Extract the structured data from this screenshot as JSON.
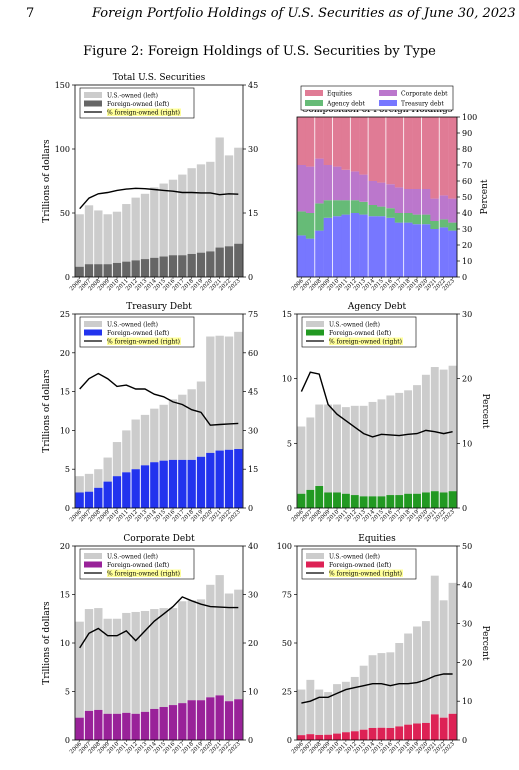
{
  "header": {
    "page_number": "7",
    "running_title": "Foreign Portfolio Holdings of U.S. Securities as of June 30, 2023"
  },
  "figure": {
    "title": "Figure 2: Foreign Holdings of U.S. Securities by Type"
  },
  "colors": {
    "us_owned": "#cccccc",
    "line": "#000000",
    "foreign_total": "#666666",
    "foreign_treasury": "#2233ee",
    "foreign_agency": "#229922",
    "foreign_corporate": "#992299",
    "foreign_equities": "#dd2255",
    "comp_equities": "#e07b95",
    "comp_corporate": "#bb77cc",
    "comp_agency": "#66bb77",
    "comp_treasury": "#7777ff",
    "legend_highlight": "#ffff99"
  },
  "chart_data": [
    {
      "id": "total",
      "type": "bar",
      "title": "Total U.S. Securities",
      "ylabel": "Trillions of dollars",
      "y2label": "",
      "ylim": [
        0,
        150
      ],
      "yticks": [
        "0",
        "50",
        "100",
        "150"
      ],
      "y2lim": [
        0,
        45
      ],
      "y2ticks": [
        "0",
        "15",
        "30",
        "45"
      ],
      "categories": [
        "2006",
        "2007",
        "2008",
        "2009",
        "2010",
        "2011",
        "2012",
        "2013",
        "2014",
        "2015",
        "2016",
        "2017",
        "2018",
        "2019",
        "2020",
        "2021",
        "2022",
        "2023"
      ],
      "foreign_color": "foreign_total",
      "legend": [
        "U.S.-owned (left)",
        "Foreign-owned (left)",
        "% foreign-owned (right)"
      ],
      "series": [
        {
          "name": "Foreign-owned (left)",
          "values": [
            8,
            10,
            10,
            10,
            11,
            12,
            13,
            14,
            15,
            16,
            17,
            17,
            18,
            19,
            20,
            23,
            24,
            26
          ]
        },
        {
          "name": "U.S.-owned (left)",
          "values": [
            41,
            46,
            42,
            39,
            40,
            45,
            49,
            51,
            55,
            57,
            59,
            63,
            67,
            69,
            70,
            86,
            71,
            75
          ]
        },
        {
          "name": "% foreign-owned (right)",
          "values": [
            16,
            18.5,
            19.5,
            19.8,
            20.3,
            20.6,
            20.8,
            20.7,
            20.5,
            20.3,
            20.1,
            19.8,
            19.8,
            19.7,
            19.7,
            19.3,
            19.5,
            19.4
          ]
        }
      ]
    },
    {
      "id": "composition",
      "type": "area",
      "title": "Composition of Foreign Holdings",
      "ylabel": "Percent",
      "ylim": [
        0,
        100
      ],
      "yticks": [
        "0",
        "10",
        "20",
        "30",
        "40",
        "50",
        "60",
        "70",
        "80",
        "90",
        "100"
      ],
      "categories": [
        "2006",
        "2007",
        "2008",
        "2009",
        "2010",
        "2011",
        "2012",
        "2013",
        "2014",
        "2015",
        "2016",
        "2017",
        "2018",
        "2019",
        "2020",
        "2021",
        "2022",
        "2023"
      ],
      "legend": [
        "Equities",
        "Corporate debt",
        "Agency debt",
        "Treasury debt"
      ],
      "series": [
        {
          "name": "Treasury debt",
          "values": [
            26,
            24,
            29,
            37,
            38,
            39,
            40,
            39,
            38,
            38,
            37,
            34,
            34,
            33,
            33,
            30,
            31,
            29
          ]
        },
        {
          "name": "Agency debt",
          "values": [
            15,
            16,
            17,
            11,
            10,
            9,
            8,
            8,
            7,
            6,
            6,
            6,
            6,
            6,
            6,
            5,
            5,
            5
          ]
        },
        {
          "name": "Corporate debt",
          "values": [
            29,
            29,
            28,
            22,
            21,
            19,
            18,
            17,
            15,
            15,
            15,
            16,
            15,
            16,
            16,
            14,
            15,
            15
          ]
        },
        {
          "name": "Equities",
          "values": [
            30,
            31,
            26,
            30,
            31,
            33,
            34,
            36,
            40,
            41,
            42,
            44,
            45,
            45,
            45,
            51,
            49,
            51
          ]
        }
      ]
    },
    {
      "id": "treasury",
      "type": "bar",
      "title": "Treasury Debt",
      "ylabel": "Trillions of dollars",
      "y2label": "",
      "ylim": [
        0,
        25
      ],
      "yticks": [
        "0",
        "5",
        "10",
        "15",
        "20",
        "25"
      ],
      "y2lim": [
        0,
        75
      ],
      "y2ticks": [
        "0",
        "15",
        "30",
        "45",
        "60",
        "75"
      ],
      "categories": [
        "2006",
        "2007",
        "2008",
        "2009",
        "2010",
        "2011",
        "2012",
        "2013",
        "2014",
        "2015",
        "2016",
        "2017",
        "2018",
        "2019",
        "2020",
        "2021",
        "2022",
        "2023"
      ],
      "foreign_color": "foreign_treasury",
      "legend": [
        "U.S.-owned (left)",
        "Foreign-owned (left)",
        "% foreign-owned (right)"
      ],
      "series": [
        {
          "name": "Foreign-owned (left)",
          "values": [
            2.0,
            2.1,
            2.6,
            3.4,
            4.1,
            4.6,
            5.0,
            5.5,
            5.9,
            6.1,
            6.2,
            6.2,
            6.2,
            6.6,
            7.1,
            7.4,
            7.5,
            7.6
          ]
        },
        {
          "name": "U.S.-owned (left)",
          "values": [
            2.1,
            2.3,
            2.4,
            3.1,
            4.4,
            5.4,
            6.4,
            6.5,
            6.9,
            7.2,
            7.8,
            8.4,
            9.1,
            9.7,
            15.0,
            14.8,
            14.6,
            15.1
          ]
        },
        {
          "name": "% foreign-owned (right)",
          "values": [
            46,
            50,
            52,
            50,
            47,
            47.5,
            46,
            46,
            44,
            43,
            41,
            40,
            38,
            37,
            32,
            32.3,
            32.5,
            32.7
          ]
        }
      ]
    },
    {
      "id": "agency",
      "type": "bar",
      "title": "Agency Debt",
      "ylabel": "",
      "y2label": "Percent",
      "ylim": [
        0,
        15
      ],
      "yticks": [
        "0",
        "5",
        "10",
        "15"
      ],
      "y2lim": [
        0,
        30
      ],
      "y2ticks": [
        "0",
        "10",
        "20",
        "30"
      ],
      "categories": [
        "2006",
        "2007",
        "2008",
        "2009",
        "2010",
        "2011",
        "2012",
        "2013",
        "2014",
        "2015",
        "2016",
        "2017",
        "2018",
        "2019",
        "2020",
        "2021",
        "2022",
        "2023"
      ],
      "foreign_color": "foreign_agency",
      "legend": [
        "U.S.-owned (left)",
        "Foreign-owned (left)",
        "% foreign-owned (right)"
      ],
      "series": [
        {
          "name": "Foreign-owned (left)",
          "values": [
            1.1,
            1.4,
            1.7,
            1.2,
            1.2,
            1.1,
            1.0,
            0.9,
            0.9,
            0.9,
            1.0,
            1.0,
            1.1,
            1.1,
            1.2,
            1.3,
            1.2,
            1.3
          ]
        },
        {
          "name": "U.S.-owned (left)",
          "values": [
            5.2,
            5.6,
            6.3,
            6.8,
            6.8,
            6.7,
            6.9,
            7.0,
            7.3,
            7.5,
            7.7,
            7.9,
            8.0,
            8.4,
            9.1,
            9.6,
            9.5,
            9.7
          ]
        },
        {
          "name": "% foreign-owned (right)",
          "values": [
            18,
            21,
            20.7,
            16,
            14.5,
            13.5,
            12.5,
            11.5,
            11,
            11.4,
            11.3,
            11.2,
            11.4,
            11.5,
            12,
            11.8,
            11.5,
            11.8
          ]
        }
      ]
    },
    {
      "id": "corporate",
      "type": "bar",
      "title": "Corporate Debt",
      "ylabel": "Trillions of dollars",
      "y2label": "",
      "ylim": [
        0,
        20
      ],
      "yticks": [
        "0",
        "5",
        "10",
        "15",
        "20"
      ],
      "y2lim": [
        0,
        40
      ],
      "y2ticks": [
        "0",
        "10",
        "20",
        "30",
        "40"
      ],
      "categories": [
        "2006",
        "2007",
        "2008",
        "2009",
        "2010",
        "2011",
        "2012",
        "2013",
        "2014",
        "2015",
        "2016",
        "2017",
        "2018",
        "2019",
        "2020",
        "2021",
        "2022",
        "2023"
      ],
      "foreign_color": "foreign_corporate",
      "legend": [
        "U.S.-owned (left)",
        "Foreign-owned (left)",
        "% foreign-owned (right)"
      ],
      "series": [
        {
          "name": "Foreign-owned (left)",
          "values": [
            2.3,
            3.0,
            3.1,
            2.7,
            2.7,
            2.8,
            2.7,
            2.9,
            3.2,
            3.4,
            3.6,
            3.8,
            4.1,
            4.1,
            4.4,
            4.6,
            4.0,
            4.2
          ]
        },
        {
          "name": "U.S.-owned (left)",
          "values": [
            9.9,
            10.5,
            10.5,
            9.8,
            9.8,
            10.3,
            10.5,
            10.4,
            10.3,
            10.2,
            10.0,
            10.5,
            10.3,
            10.4,
            11.6,
            12.4,
            11.1,
            11.3
          ]
        },
        {
          "name": "% foreign-owned (right)",
          "values": [
            19,
            22,
            23,
            21.5,
            21.5,
            22.5,
            20.5,
            22.5,
            24.5,
            26,
            27.5,
            29.5,
            28.7,
            28,
            27.5,
            27.4,
            27.3,
            27.3
          ]
        }
      ]
    },
    {
      "id": "equities",
      "type": "bar",
      "title": "Equities",
      "ylabel": "",
      "y2label": "Percent",
      "ylim": [
        0,
        100
      ],
      "yticks": [
        "0",
        "25",
        "50",
        "75",
        "100"
      ],
      "y2lim": [
        0,
        50
      ],
      "y2ticks": [
        "0",
        "10",
        "20",
        "30",
        "40",
        "50"
      ],
      "categories": [
        "2006",
        "2007",
        "2008",
        "2009",
        "2010",
        "2011",
        "2012",
        "2013",
        "2014",
        "2015",
        "2016",
        "2017",
        "2018",
        "2019",
        "2020",
        "2021",
        "2022",
        "2023"
      ],
      "foreign_color": "foreign_equities",
      "legend": [
        "U.S.-owned (left)",
        "Foreign-owned (left)",
        "% foreign-owned (right)"
      ],
      "series": [
        {
          "name": "Foreign-owned (left)",
          "values": [
            2.5,
            3.0,
            2.6,
            2.7,
            3.3,
            4.0,
            4.5,
            5.3,
            6.2,
            6.3,
            6.2,
            7.0,
            7.9,
            8.5,
            8.8,
            13.2,
            11.5,
            13.5
          ]
        },
        {
          "name": "U.S.-owned (left)",
          "values": [
            23.5,
            28,
            23.4,
            22,
            25.5,
            26,
            28,
            33,
            37.5,
            38.5,
            39,
            43,
            47,
            50,
            52.5,
            71.5,
            60.5,
            67.5
          ]
        },
        {
          "name": "% foreign-owned (right)",
          "values": [
            9.5,
            10,
            11,
            11,
            12,
            13,
            13.5,
            14,
            14.5,
            14.5,
            14,
            14.5,
            14.5,
            14.8,
            15.5,
            16.5,
            17,
            17
          ]
        }
      ]
    }
  ]
}
